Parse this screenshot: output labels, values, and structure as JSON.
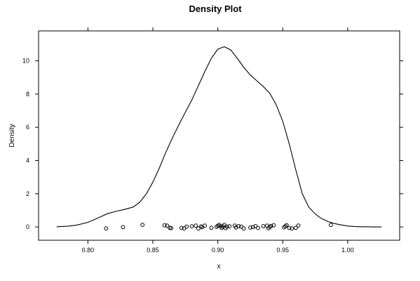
{
  "chart_data": {
    "type": "line",
    "title": "Density Plot",
    "xlabel": "x",
    "ylabel": "Density",
    "xlim": [
      0.762,
      1.04
    ],
    "ylim": [
      -0.8,
      11.8
    ],
    "xticks": [
      0.8,
      0.85,
      0.9,
      0.95,
      1.0
    ],
    "xtick_labels": [
      "0.80",
      "0.85",
      "0.90",
      "0.95",
      "1.00"
    ],
    "yticks": [
      0,
      2,
      4,
      6,
      8,
      10
    ],
    "ytick_labels": [
      "0",
      "2",
      "4",
      "6",
      "8",
      "10"
    ],
    "grid": false,
    "series": [
      {
        "kind": "density-curve",
        "x": [
          0.776,
          0.785,
          0.792,
          0.8,
          0.808,
          0.815,
          0.822,
          0.828,
          0.835,
          0.84,
          0.845,
          0.85,
          0.855,
          0.86,
          0.865,
          0.87,
          0.875,
          0.88,
          0.885,
          0.89,
          0.895,
          0.9,
          0.905,
          0.91,
          0.915,
          0.92,
          0.925,
          0.93,
          0.935,
          0.94,
          0.945,
          0.95,
          0.955,
          0.96,
          0.965,
          0.97,
          0.975,
          0.98,
          0.985,
          0.99,
          0.995,
          1.0,
          1.005,
          1.01,
          1.015,
          1.02,
          1.026
        ],
        "y": [
          0.01,
          0.05,
          0.12,
          0.28,
          0.55,
          0.8,
          0.95,
          1.05,
          1.2,
          1.5,
          2.0,
          2.7,
          3.55,
          4.5,
          5.35,
          6.15,
          6.9,
          7.65,
          8.5,
          9.35,
          10.15,
          10.7,
          10.85,
          10.65,
          10.15,
          9.6,
          9.15,
          8.8,
          8.45,
          8.05,
          7.35,
          6.35,
          5.0,
          3.45,
          2.0,
          1.2,
          0.78,
          0.5,
          0.32,
          0.2,
          0.12,
          0.06,
          0.03,
          0.01,
          0.01,
          0.0,
          0.0
        ]
      },
      {
        "kind": "rug-points",
        "x": [
          0.814,
          0.827,
          0.842,
          0.859,
          0.861,
          0.863,
          0.864,
          0.872,
          0.874,
          0.876,
          0.88,
          0.883,
          0.885,
          0.887,
          0.888,
          0.89,
          0.895,
          0.899,
          0.9,
          0.901,
          0.902,
          0.903,
          0.904,
          0.905,
          0.906,
          0.907,
          0.909,
          0.913,
          0.914,
          0.916,
          0.918,
          0.92,
          0.925,
          0.927,
          0.929,
          0.931,
          0.935,
          0.938,
          0.939,
          0.94,
          0.941,
          0.943,
          0.951,
          0.952,
          0.953,
          0.955,
          0.957,
          0.96,
          0.962,
          0.987
        ],
        "y": [
          -0.09,
          -0.01,
          0.13,
          0.1,
          0.08,
          -0.05,
          -0.07,
          -0.06,
          -0.09,
          0.02,
          0.04,
          0.08,
          -0.09,
          0.03,
          -0.01,
          0.08,
          -0.05,
          0.0,
          0.07,
          0.12,
          0.05,
          -0.05,
          0.03,
          0.12,
          -0.07,
          0.02,
          0.04,
          0.08,
          -0.03,
          0.05,
          0.02,
          -0.09,
          -0.04,
          -0.01,
          0.05,
          -0.06,
          0.05,
          0.08,
          -0.08,
          0.0,
          0.06,
          0.1,
          -0.02,
          0.05,
          0.11,
          -0.06,
          -0.09,
          -0.05,
          0.09,
          0.12
        ]
      }
    ]
  }
}
